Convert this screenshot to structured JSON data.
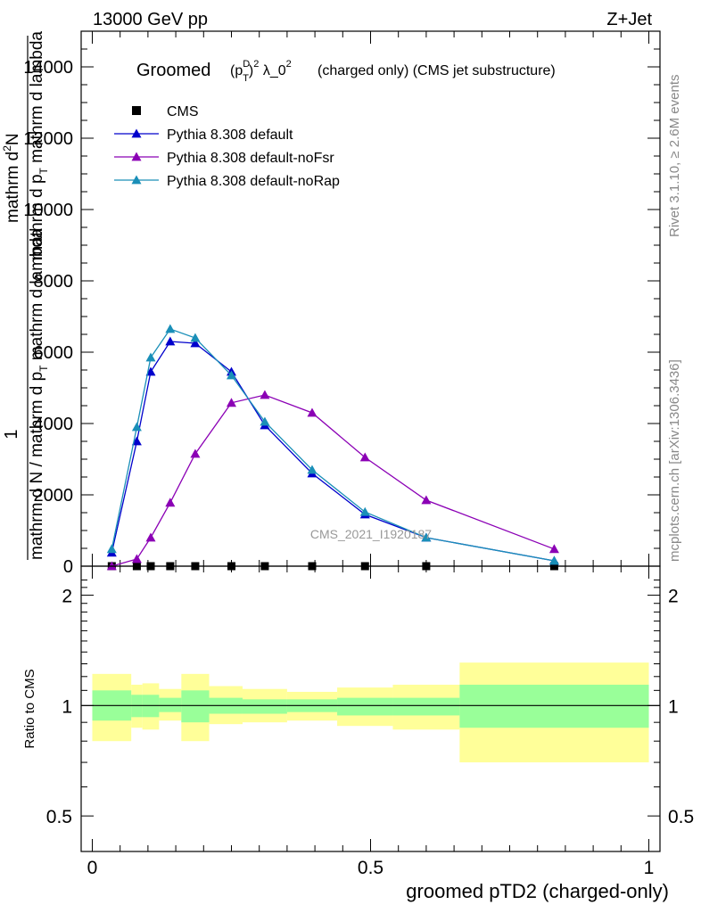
{
  "header": {
    "left": "13000 GeV pp",
    "right": "Z+Jet"
  },
  "side_labels": {
    "rivet": "Rivet 3.1.10, ≥ 2.6M events",
    "mcplots": "mcplots.cern.ch [arXiv:1306.3436]"
  },
  "watermark": "CMS_2021_I1920187",
  "chart_data": [
    {
      "type": "line",
      "title": "Groomed",
      "title_formula": "(p_T^D)^2 λ_0^2",
      "title_suffix": "(charged only) (CMS jet substructure)",
      "ylabel_lines": [
        "1",
        "mathrm d N / mathrm d p_T mathrm d lambda",
        "mathrm d^2N",
        "mathrm d p_T mathrm d lambda"
      ],
      "ylabel_parts": {
        "one": "1",
        "den1": "mathrm d N / mathrm d p",
        "den1_sub": "T",
        "den2": " mathrm d lambda",
        "num": "mathrm d",
        "num_sup": "2",
        "num2": "N",
        "mid": "mathrm d p",
        "mid_sub": "T",
        "mid2": " mathrm d lambda"
      },
      "xlim": [
        -0.02,
        1.02
      ],
      "ylim": [
        0,
        15000
      ],
      "y_ticks": [
        0,
        2000,
        4000,
        6000,
        8000,
        10000,
        12000,
        14000
      ],
      "legend_position": "top-left",
      "series": [
        {
          "name": "CMS",
          "color": "#000000",
          "marker": "square",
          "line": false,
          "x": [
            0.035,
            0.08,
            0.105,
            0.14,
            0.185,
            0.25,
            0.31,
            0.395,
            0.49,
            0.6,
            0.83
          ],
          "y": [
            0,
            0,
            0,
            0,
            0,
            0,
            0,
            0,
            0,
            0,
            0
          ]
        },
        {
          "name": "Pythia 8.308 default",
          "color": "#0000cc",
          "marker": "triangle",
          "line": true,
          "x": [
            0.035,
            0.08,
            0.105,
            0.14,
            0.185,
            0.25,
            0.31,
            0.395,
            0.49,
            0.6,
            0.83
          ],
          "y": [
            380,
            3500,
            5450,
            6300,
            6250,
            5450,
            3950,
            2600,
            1450,
            800,
            150
          ]
        },
        {
          "name": "Pythia 8.308 default-noFsr",
          "color": "#8b00b5",
          "marker": "triangle",
          "line": true,
          "x": [
            0.035,
            0.08,
            0.105,
            0.14,
            0.185,
            0.25,
            0.31,
            0.395,
            0.49,
            0.6,
            0.83
          ],
          "y": [
            0,
            200,
            800,
            1780,
            3150,
            4580,
            4800,
            4300,
            3050,
            1850,
            480
          ]
        },
        {
          "name": "Pythia 8.308 default-noRap",
          "color": "#1a8fb8",
          "marker": "triangle",
          "line": true,
          "x": [
            0.035,
            0.08,
            0.105,
            0.14,
            0.185,
            0.25,
            0.31,
            0.395,
            0.49,
            0.6,
            0.83
          ],
          "y": [
            480,
            3900,
            5850,
            6650,
            6400,
            5350,
            4050,
            2700,
            1520,
            800,
            150
          ]
        }
      ]
    },
    {
      "type": "area",
      "ylabel": "Ratio to CMS",
      "xlabel": "groomed pTD2 (charged-only)",
      "xlim": [
        -0.02,
        1.02
      ],
      "ylim": [
        0.4,
        2.4
      ],
      "log_y": true,
      "y_ticks": [
        0.5,
        1,
        2
      ],
      "y_tick_labels": [
        "0.5",
        "1",
        "2"
      ],
      "x_ticks": [
        0,
        0.5,
        1
      ],
      "x_tick_labels": [
        "0",
        "0.5",
        "1"
      ],
      "reference_line": 1,
      "inner_band_color": "#99ff99",
      "outer_band_color": "#ffff99",
      "bins": [
        {
          "x0": 0.0,
          "x1": 0.07,
          "inner": [
            0.91,
            1.1
          ],
          "outer": [
            0.8,
            1.22
          ]
        },
        {
          "x0": 0.07,
          "x1": 0.09,
          "inner": [
            0.93,
            1.07
          ],
          "outer": [
            0.87,
            1.14
          ]
        },
        {
          "x0": 0.09,
          "x1": 0.12,
          "inner": [
            0.93,
            1.07
          ],
          "outer": [
            0.86,
            1.15
          ]
        },
        {
          "x0": 0.12,
          "x1": 0.16,
          "inner": [
            0.96,
            1.05
          ],
          "outer": [
            0.91,
            1.11
          ]
        },
        {
          "x0": 0.16,
          "x1": 0.21,
          "inner": [
            0.9,
            1.1
          ],
          "outer": [
            0.8,
            1.22
          ]
        },
        {
          "x0": 0.21,
          "x1": 0.27,
          "inner": [
            0.95,
            1.05
          ],
          "outer": [
            0.89,
            1.13
          ]
        },
        {
          "x0": 0.27,
          "x1": 0.35,
          "inner": [
            0.95,
            1.04
          ],
          "outer": [
            0.9,
            1.11
          ]
        },
        {
          "x0": 0.35,
          "x1": 0.44,
          "inner": [
            0.96,
            1.04
          ],
          "outer": [
            0.91,
            1.09
          ]
        },
        {
          "x0": 0.44,
          "x1": 0.54,
          "inner": [
            0.94,
            1.05
          ],
          "outer": [
            0.88,
            1.12
          ]
        },
        {
          "x0": 0.54,
          "x1": 0.66,
          "inner": [
            0.94,
            1.05
          ],
          "outer": [
            0.86,
            1.14
          ]
        },
        {
          "x0": 0.66,
          "x1": 1.0,
          "inner": [
            0.87,
            1.14
          ],
          "outer": [
            0.7,
            1.31
          ]
        }
      ]
    }
  ]
}
